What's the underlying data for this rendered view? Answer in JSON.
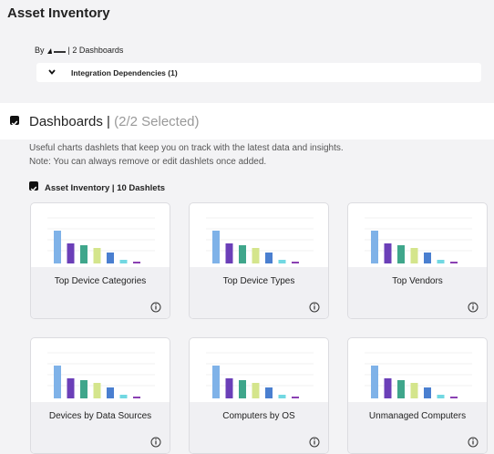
{
  "header": {
    "title": "Asset Inventory",
    "by": "By",
    "dashboards": "| 2 Dashboards"
  },
  "dependencies": {
    "label": "Integration Dependencies (1)"
  },
  "section": {
    "title": "Dashboards |",
    "selected": "(2/2 Selected)",
    "description": [
      "Useful charts dashlets that keep you on track with the latest data and insights.",
      "Note: You can always remove or edit dashlets once added."
    ]
  },
  "group": {
    "label": "Asset Inventory | 10 Dashlets",
    "cards": [
      "Top Device Categories",
      "Top Device Types",
      "Top Vendors",
      "Devices by Data Sources",
      "Computers by OS",
      "Unmanaged Computers"
    ]
  }
}
